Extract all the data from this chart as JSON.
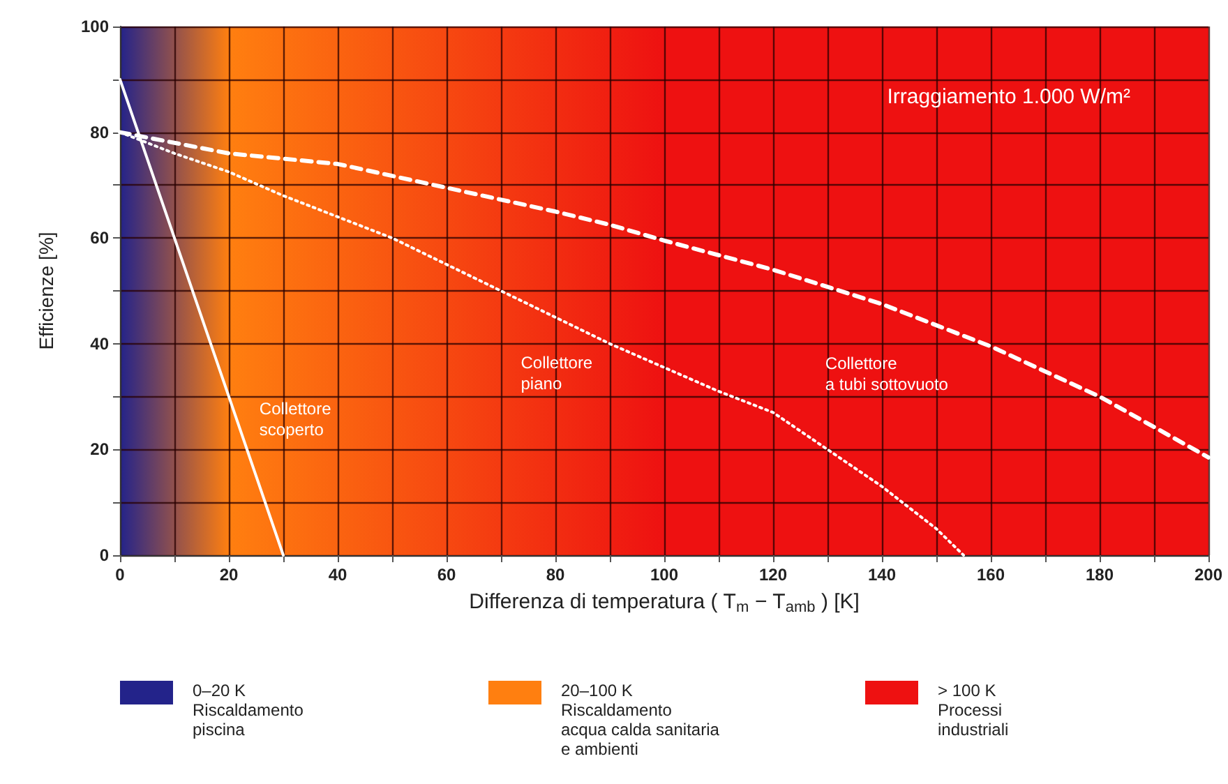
{
  "chart_data": {
    "type": "line",
    "xlabel": "Differenza di temperatura ( T$_{m}$ − T$_{amb}$ ) [K]",
    "ylabel": "Efficienze [%]",
    "xlim": [
      0,
      200
    ],
    "ylim": [
      0,
      100
    ],
    "xticks": [
      0,
      {
        "value": 10,
        "label": null
      },
      20,
      {
        "value": 30,
        "label": null
      },
      40,
      {
        "value": 50,
        "label": null
      },
      60,
      {
        "value": 70,
        "label": null
      },
      80,
      {
        "value": 90,
        "label": null
      },
      100,
      {
        "value": 110,
        "label": null
      },
      120,
      {
        "value": 130,
        "label": null
      },
      140,
      {
        "value": 150,
        "label": null
      },
      160,
      {
        "value": 170,
        "label": null
      },
      180,
      {
        "value": 190,
        "label": null
      },
      200
    ],
    "yticks": [
      0,
      {
        "value": 10,
        "label": null
      },
      20,
      {
        "value": 30,
        "label": null
      },
      40,
      {
        "value": 50,
        "label": null
      },
      60,
      {
        "value": 70,
        "label": null
      },
      80,
      {
        "value": 90,
        "label": null
      },
      100
    ],
    "grid": true,
    "marker": "none",
    "legend": "bottom",
    "series": [
      {
        "name": "Collettore\nscoperto",
        "color": "#ffffff",
        "line_style": "solid",
        "x": [
          0,
          30
        ],
        "values": [
          90,
          0
        ]
      },
      {
        "name": "Collettore\npiano",
        "color": "#ffffff",
        "line_style": "dotted",
        "x": [
          0,
          10,
          20,
          30,
          40,
          50,
          60,
          70,
          80,
          90,
          100,
          110,
          120,
          130,
          140,
          150,
          155
        ],
        "values": [
          80,
          76,
          72.5,
          68,
          64,
          60,
          55,
          50,
          45,
          40,
          35.5,
          31,
          27,
          20,
          13,
          5,
          0
        ]
      },
      {
        "name": "Collettore\na tubi sottovuoto",
        "color": "#ffffff",
        "line_style": "dashed",
        "x": [
          0,
          20,
          40,
          60,
          80,
          90,
          100,
          120,
          140,
          160,
          180,
          200
        ],
        "values": [
          80,
          76,
          74,
          69.5,
          65,
          62.5,
          59.5,
          54,
          47.5,
          39.5,
          30,
          18.5
        ]
      }
    ],
    "bands": [
      {
        "axis": "x",
        "from": 0,
        "to": 20,
        "color": "#23238a",
        "label": "0–20 K\nRiscaldamento\npiscina"
      },
      {
        "axis": "x",
        "from": 20,
        "to": 100,
        "color": "#ff7f10",
        "label": "20–100 K\nRiscaldamento\nacqua calda sanitaria\ne ambienti"
      },
      {
        "axis": "x",
        "from": 100,
        "to": 200,
        "color": "#ee1111",
        "label": "> 100 K\nProcessi\nindustriali"
      }
    ],
    "annotations": [
      "Irraggiamento 1.000 W/m²"
    ]
  }
}
